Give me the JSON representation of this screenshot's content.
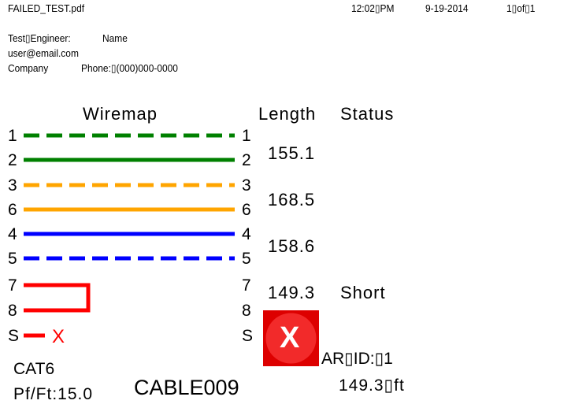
{
  "header": {
    "filename": "FAILED_TEST.pdf",
    "time": "12:02▯PM",
    "date": "9-19-2014",
    "page": "1▯of▯1"
  },
  "info": {
    "engineer_label": "Test▯Engineer:",
    "engineer_name": "Name",
    "email": "user@email.com",
    "company": "Company",
    "phone": "Phone:▯(000)000-0000"
  },
  "columns": {
    "wiremap": "Wiremap",
    "length": "Length",
    "status": "Status"
  },
  "pins_left": [
    "1",
    "2",
    "3",
    "6",
    "4",
    "5",
    "7",
    "8",
    "S"
  ],
  "pins_right": [
    "1",
    "2",
    "3",
    "6",
    "4",
    "5",
    "7",
    "8",
    "S"
  ],
  "wire_colors": {
    "green": "#008000",
    "orange": "#ffa500",
    "blue": "#0000ff",
    "red": "#ff0000"
  },
  "lengths": [
    "155.1",
    "168.5",
    "158.6",
    "149.3"
  ],
  "statuses": [
    "",
    "",
    "",
    "Short"
  ],
  "shield_fault": "X",
  "result": {
    "icon": "fail-x-icon",
    "color": "#dd0000",
    "ar_id": "AR▯ID:▯1",
    "length": "149.3▯ft"
  },
  "cable": {
    "type": "CAT6",
    "pf_ft": "Pf/Ft:15.0",
    "id": "CABLE009"
  }
}
